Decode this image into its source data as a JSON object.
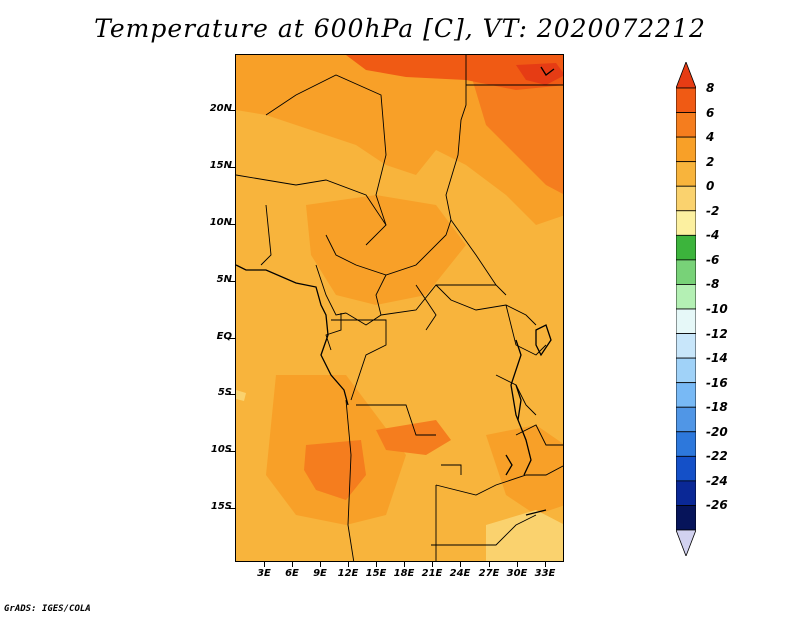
{
  "title": "Temperature at 600hPa [C], VT: 2020072212",
  "credit": "GrADS: IGES/COLA",
  "map": {
    "lat_labels": [
      "20N",
      "15N",
      "10N",
      "5N",
      "EQ",
      "5S",
      "10S",
      "15S"
    ],
    "lon_labels": [
      "3E",
      "6E",
      "9E",
      "12E",
      "15E",
      "18E",
      "21E",
      "24E",
      "27E",
      "30E",
      "33E"
    ]
  },
  "colorbar": {
    "labels": [
      "8",
      "6",
      "4",
      "2",
      "0",
      "-2",
      "-4",
      "-6",
      "-8",
      "-10",
      "-12",
      "-14",
      "-16",
      "-18",
      "-20",
      "-22",
      "-24",
      "-26"
    ],
    "colors": [
      "#e63c14",
      "#f05a14",
      "#f57d1e",
      "#f8a028",
      "#f8b43c",
      "#fad26e",
      "#fcf0a0",
      "#3cb43c",
      "#78d278",
      "#b4f0b4",
      "#e6f8f8",
      "#c8e6fa",
      "#a0d2f8",
      "#78b9f5",
      "#5096e6",
      "#2d78dc",
      "#1450c8",
      "#0a2896",
      "#06145a",
      "#d2d2f0"
    ]
  }
}
